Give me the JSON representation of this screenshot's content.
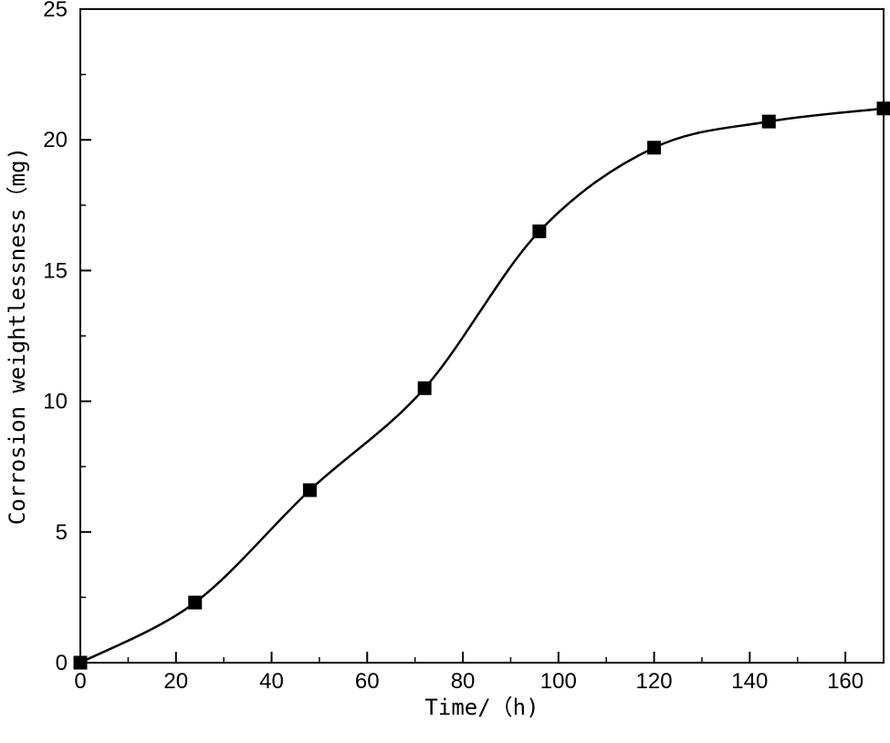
{
  "chart_data": {
    "type": "line",
    "xlabel": "Time/（h)",
    "ylabel": "Corrosion weightlessness（mg)",
    "xlim": [
      0,
      168
    ],
    "ylim": [
      0,
      25
    ],
    "x_ticks": [
      0,
      20,
      40,
      60,
      80,
      100,
      120,
      140,
      160
    ],
    "y_ticks": [
      0,
      5,
      10,
      15,
      20,
      25
    ],
    "grid": false,
    "marker": "square",
    "series": [
      {
        "x": [
          0,
          24,
          48,
          72,
          96,
          120,
          144,
          168
        ],
        "values": [
          0,
          2.3,
          6.6,
          10.5,
          16.5,
          19.7,
          20.7,
          21.2
        ]
      }
    ],
    "colors": {
      "line": "#000000",
      "marker": "#000000"
    }
  }
}
